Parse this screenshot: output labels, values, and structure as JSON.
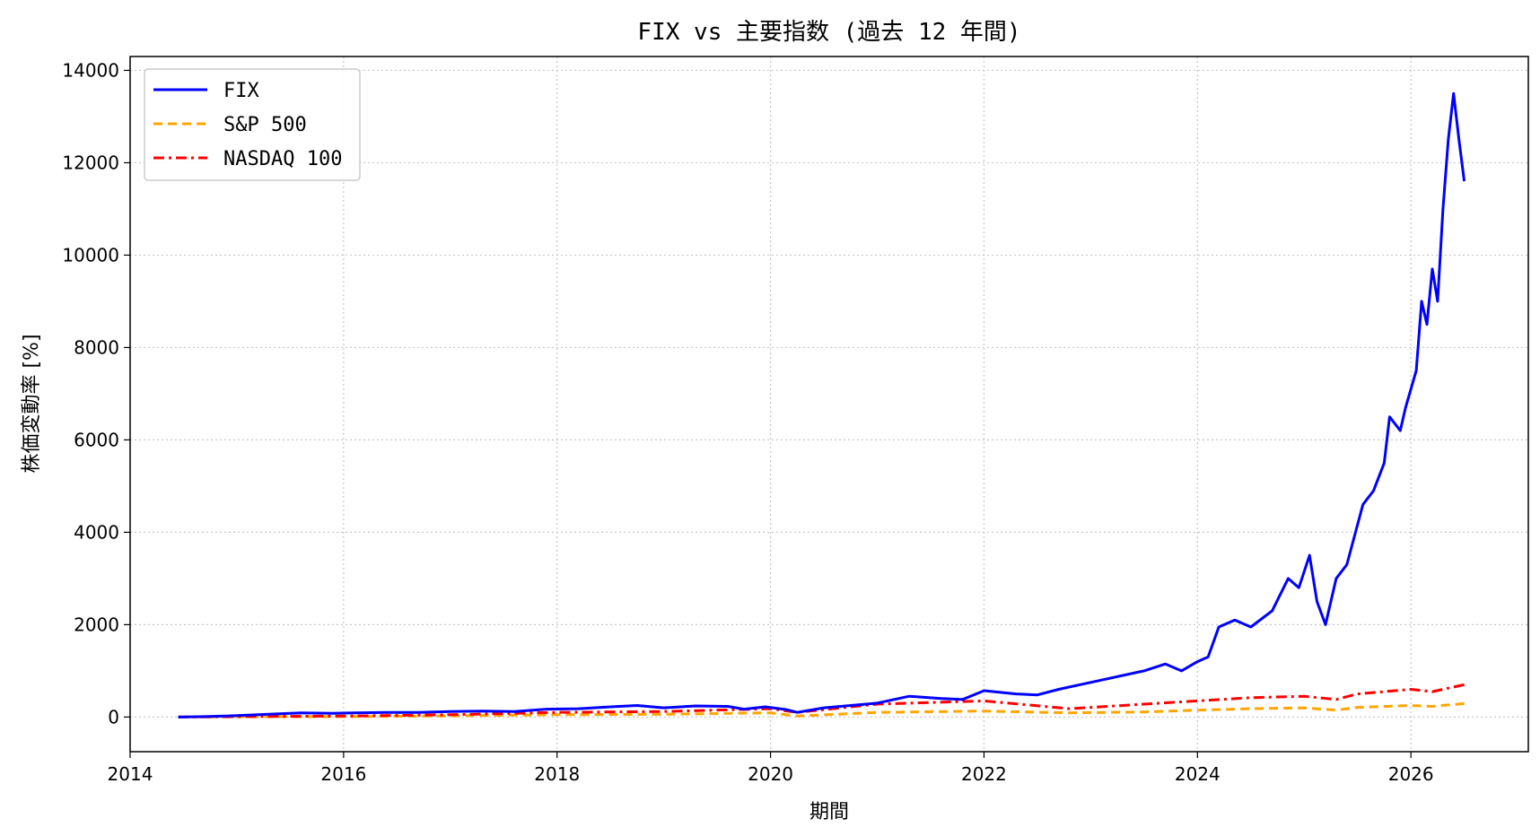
{
  "chart_data": {
    "type": "line",
    "title": "FIX vs 主要指数 (過去 12 年間)",
    "xlabel": "期間",
    "ylabel": "株価変動率 [%]",
    "xlim": [
      2014.0,
      2027.1
    ],
    "ylim": [
      -750,
      14300
    ],
    "xticks": [
      2014,
      2016,
      2018,
      2020,
      2022,
      2024,
      2026
    ],
    "yticks": [
      0,
      2000,
      4000,
      6000,
      8000,
      10000,
      12000,
      14000
    ],
    "grid": true,
    "legend": "top-left",
    "series": [
      {
        "name": "FIX",
        "color": "#0000ff",
        "dash": "solid",
        "x": [
          2014.45,
          2014.7,
          2015.0,
          2015.3,
          2015.6,
          2015.9,
          2016.1,
          2016.4,
          2016.7,
          2017.0,
          2017.3,
          2017.6,
          2017.9,
          2018.2,
          2018.5,
          2018.75,
          2019.0,
          2019.3,
          2019.6,
          2019.75,
          2019.95,
          2020.15,
          2020.25,
          2020.5,
          2020.8,
          2021.0,
          2021.3,
          2021.6,
          2021.8,
          2022.0,
          2022.3,
          2022.5,
          2022.7,
          2022.9,
          2023.1,
          2023.3,
          2023.5,
          2023.7,
          2023.85,
          2024.0,
          2024.1,
          2024.2,
          2024.35,
          2024.5,
          2024.7,
          2024.85,
          2024.95,
          2025.05,
          2025.12,
          2025.2,
          2025.3,
          2025.4,
          2025.55,
          2025.65,
          2025.75,
          2025.8,
          2025.9,
          2025.95,
          2026.05,
          2026.1,
          2026.15,
          2026.2,
          2026.25,
          2026.3,
          2026.35,
          2026.4,
          2026.45,
          2026.5
        ],
        "y": [
          0,
          10,
          30,
          60,
          90,
          80,
          90,
          100,
          100,
          120,
          130,
          120,
          170,
          180,
          220,
          250,
          200,
          240,
          230,
          170,
          220,
          160,
          100,
          200,
          260,
          300,
          450,
          400,
          380,
          570,
          500,
          480,
          600,
          700,
          800,
          900,
          1000,
          1150,
          1000,
          1200,
          1300,
          1950,
          2100,
          1950,
          2300,
          3000,
          2800,
          3500,
          2500,
          2000,
          3000,
          3300,
          4600,
          4900,
          5500,
          6500,
          6200,
          6700,
          7500,
          9000,
          8500,
          9700,
          9000,
          11000,
          12500,
          13500,
          12500,
          11600
        ]
      },
      {
        "name": "S&P 500",
        "color": "#ffa500",
        "dash": "dashed",
        "x": [
          2014.45,
          2015.0,
          2016.0,
          2017.0,
          2018.0,
          2019.0,
          2020.0,
          2020.25,
          2021.0,
          2022.0,
          2022.8,
          2023.5,
          2024.0,
          2024.5,
          2025.0,
          2025.3,
          2025.5,
          2026.0,
          2026.2,
          2026.5
        ],
        "y": [
          0,
          5,
          10,
          25,
          50,
          60,
          90,
          20,
          100,
          130,
          90,
          110,
          150,
          180,
          200,
          150,
          210,
          250,
          230,
          290
        ]
      },
      {
        "name": "NASDAQ 100",
        "color": "#ff0000",
        "dash": "dashdot",
        "x": [
          2014.45,
          2015.0,
          2016.0,
          2017.0,
          2018.0,
          2019.0,
          2020.0,
          2020.25,
          2021.0,
          2022.0,
          2022.8,
          2023.5,
          2024.0,
          2024.5,
          2025.0,
          2025.3,
          2025.5,
          2026.0,
          2026.2,
          2026.5
        ],
        "y": [
          0,
          10,
          20,
          50,
          100,
          120,
          180,
          100,
          280,
          350,
          180,
          280,
          350,
          420,
          450,
          380,
          500,
          600,
          550,
          700
        ]
      }
    ]
  }
}
